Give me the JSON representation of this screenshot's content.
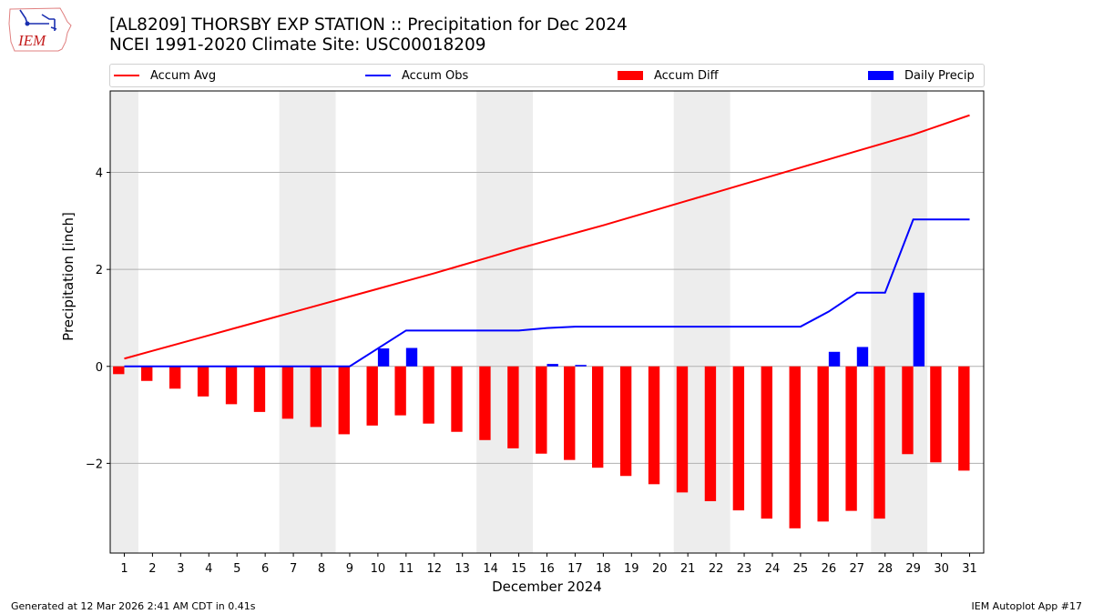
{
  "header": {
    "logo_text": "IEM",
    "title_line1": "[AL8209] THORSBY EXP STATION :: Precipitation for Dec 2024",
    "title_line2": "NCEI 1991-2020 Climate Site: USC00018209"
  },
  "legend": [
    {
      "label": "Accum Avg",
      "kind": "line",
      "color": "#ff0000"
    },
    {
      "label": "Accum Obs",
      "kind": "line",
      "color": "#0000ff"
    },
    {
      "label": "Accum Diff",
      "kind": "patch",
      "color": "#ff0000"
    },
    {
      "label": "Daily Precip",
      "kind": "patch",
      "color": "#0000ff"
    }
  ],
  "footer": {
    "left": "Generated at 12 Mar 2026 2:41 AM CDT in 0.41s",
    "right": "IEM Autoplot App #17"
  },
  "chart_data": {
    "type": "bar",
    "title": "[AL8209] THORSBY EXP STATION :: Precipitation for Dec 2024",
    "subtitle": "NCEI 1991-2020 Climate Site: USC00018209",
    "xlabel": "December 2024",
    "ylabel": "Precipitation [inch]",
    "xlim": [
      0.5,
      31.5
    ],
    "ylim": [
      -3.85,
      5.68
    ],
    "yticks": [
      -2,
      0,
      2,
      4
    ],
    "ytick_labels": [
      "−2",
      "0",
      "2",
      "4"
    ],
    "grid": "horizontal",
    "legend_position": "top",
    "weekend_shading": [
      [
        0.5,
        1.5
      ],
      [
        6.5,
        8.5
      ],
      [
        13.5,
        15.5
      ],
      [
        20.5,
        22.5
      ],
      [
        27.5,
        29.5
      ]
    ],
    "weekend_color": "#ededed",
    "x": [
      1,
      2,
      3,
      4,
      5,
      6,
      7,
      8,
      9,
      10,
      11,
      12,
      13,
      14,
      15,
      16,
      17,
      18,
      19,
      20,
      21,
      22,
      23,
      24,
      25,
      26,
      27,
      28,
      29,
      30,
      31
    ],
    "series": [
      {
        "name": "Accum Avg",
        "kind": "line",
        "color": "#ff0000",
        "values": [
          0.16,
          0.32,
          0.48,
          0.64,
          0.8,
          0.96,
          1.12,
          1.28,
          1.44,
          1.6,
          1.76,
          1.92,
          2.09,
          2.26,
          2.43,
          2.59,
          2.75,
          2.91,
          3.08,
          3.25,
          3.42,
          3.59,
          3.76,
          3.93,
          4.1,
          4.27,
          4.44,
          4.61,
          4.78,
          4.98,
          5.18
        ]
      },
      {
        "name": "Accum Obs",
        "kind": "line",
        "color": "#0000ff",
        "values": [
          0,
          0,
          0,
          0,
          0,
          0,
          0,
          0,
          0,
          0.37,
          0.74,
          0.74,
          0.74,
          0.74,
          0.74,
          0.79,
          0.82,
          0.82,
          0.82,
          0.82,
          0.82,
          0.82,
          0.82,
          0.82,
          0.82,
          1.13,
          1.52,
          1.52,
          3.03,
          3.03,
          3.03
        ]
      },
      {
        "name": "Accum Diff",
        "kind": "bar",
        "color": "#ff0000",
        "offset": "left",
        "values": [
          -0.16,
          -0.3,
          -0.46,
          -0.62,
          -0.78,
          -0.94,
          -1.08,
          -1.25,
          -1.4,
          -1.22,
          -1.01,
          -1.18,
          -1.35,
          -1.52,
          -1.69,
          -1.8,
          -1.93,
          -2.09,
          -2.26,
          -2.43,
          -2.6,
          -2.78,
          -2.97,
          -3.14,
          -3.34,
          -3.2,
          -2.98,
          -3.14,
          -1.81,
          -1.98,
          -2.15
        ]
      },
      {
        "name": "Daily Precip",
        "kind": "bar",
        "color": "#0000ff",
        "offset": "right",
        "values": [
          0,
          0,
          0,
          0,
          0,
          0,
          0,
          0,
          0,
          0.37,
          0.38,
          0,
          0,
          0,
          0,
          0.05,
          0.03,
          0,
          0,
          0,
          0,
          0,
          0,
          0,
          0,
          0.3,
          0.4,
          0,
          1.52,
          0,
          0
        ]
      }
    ]
  }
}
